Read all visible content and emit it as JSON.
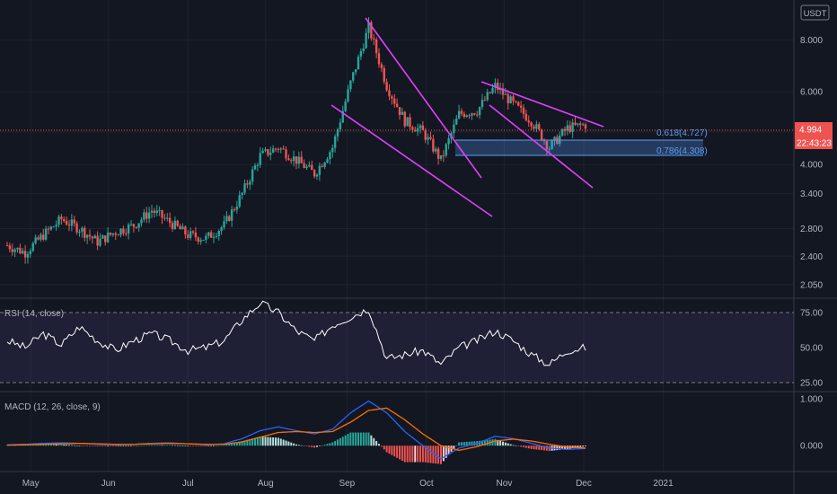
{
  "chart_data": {
    "type": "candlestick",
    "currency": "USDT",
    "price_axis": {
      "ticks": [
        "8.000",
        "6.000",
        "4.800",
        "4.000",
        "3.400",
        "2.800",
        "2.400",
        "2.050"
      ],
      "tick_values": [
        8.0,
        6.0,
        4.8,
        4.0,
        3.4,
        2.8,
        2.4,
        2.05
      ],
      "scale": "log",
      "range": [
        1.9,
        10.0
      ]
    },
    "time_axis": {
      "labels": [
        "May",
        "Jun",
        "Jul",
        "Aug",
        "Sep",
        "Oct",
        "Nov",
        "Dec",
        "2021"
      ]
    },
    "last_price": {
      "value": "4.994",
      "color": "#ef5350"
    },
    "countdown": "22:43:23",
    "fib_levels": [
      {
        "label": "0.618(4.727)",
        "value": 4.727
      },
      {
        "label": "0.786(4.308)",
        "value": 4.308
      }
    ],
    "colors": {
      "up": "#26a69a",
      "down": "#ef5350",
      "trendline": "#e040fb",
      "background": "#131722"
    },
    "candles_close_weekly": [
      2.55,
      2.45,
      2.7,
      2.95,
      2.8,
      2.6,
      2.75,
      2.85,
      3.1,
      2.9,
      2.7,
      2.65,
      2.85,
      3.4,
      4.2,
      4.4,
      4.1,
      3.8,
      4.4,
      6.3,
      8.6,
      6.2,
      5.1,
      4.8,
      4.1,
      5.3,
      5.4,
      6.2,
      5.6,
      5.1,
      4.4,
      4.9,
      4.994
    ],
    "rsi": {
      "title": "RSI (14, close)",
      "ticks": [
        "75.00",
        "50.00",
        "25.00"
      ],
      "tick_values": [
        75,
        50,
        25
      ],
      "values": [
        55,
        50,
        60,
        52,
        65,
        55,
        48,
        55,
        60,
        55,
        48,
        50,
        55,
        70,
        82,
        75,
        62,
        55,
        66,
        72,
        78,
        42,
        45,
        48,
        38,
        50,
        55,
        62,
        55,
        45,
        38,
        48,
        50
      ]
    },
    "macd": {
      "title": "MACD (12, 26, close, 9)",
      "ticks": [
        "1.000",
        "0.000"
      ],
      "tick_values": [
        1.0,
        0.0
      ],
      "range": [
        -0.55,
        1.15
      ],
      "macd": [
        0.02,
        0.03,
        0.05,
        0.06,
        0.05,
        0.03,
        0.02,
        0.03,
        0.05,
        0.06,
        0.04,
        0.02,
        0.04,
        0.15,
        0.32,
        0.4,
        0.32,
        0.25,
        0.35,
        0.7,
        0.95,
        0.7,
        0.3,
        0.0,
        -0.28,
        -0.05,
        0.05,
        0.2,
        0.15,
        0.05,
        -0.05,
        -0.08,
        -0.06
      ],
      "signal": [
        0.01,
        0.02,
        0.03,
        0.04,
        0.05,
        0.04,
        0.03,
        0.03,
        0.04,
        0.05,
        0.04,
        0.03,
        0.03,
        0.08,
        0.18,
        0.28,
        0.3,
        0.28,
        0.3,
        0.5,
        0.75,
        0.8,
        0.55,
        0.25,
        0.0,
        -0.1,
        -0.02,
        0.1,
        0.14,
        0.1,
        0.03,
        -0.03,
        -0.05
      ]
    }
  }
}
